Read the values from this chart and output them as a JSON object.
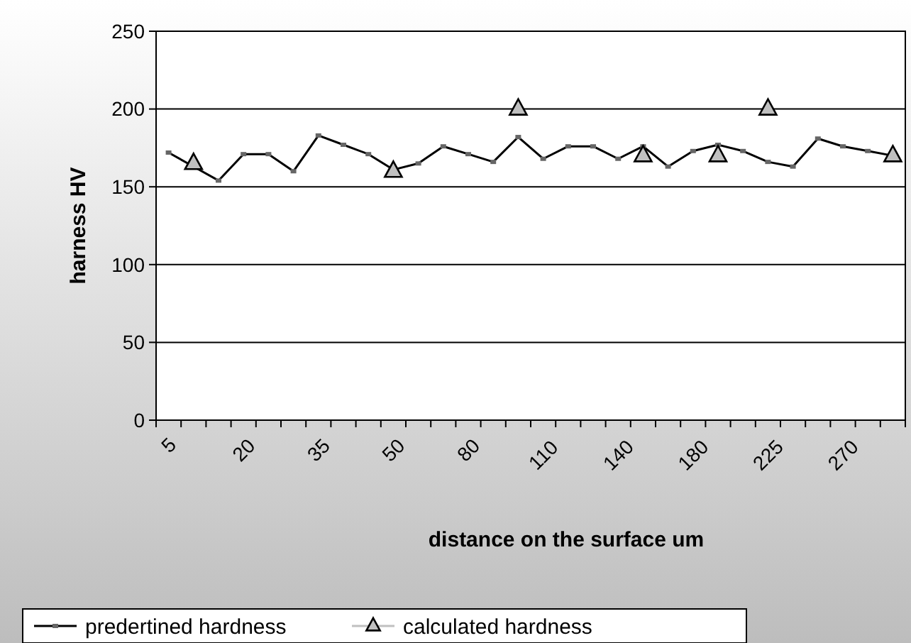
{
  "chart_data": {
    "type": "line",
    "xlabel": "distance on the surface um",
    "ylabel": "harness HV",
    "categories": [
      "5",
      null,
      null,
      "20",
      null,
      null,
      "35",
      null,
      null,
      "50",
      null,
      null,
      "80",
      null,
      null,
      "110",
      null,
      null,
      "140",
      null,
      null,
      "180",
      null,
      null,
      "225",
      null,
      null,
      "270",
      null,
      null
    ],
    "series": [
      {
        "name": "predertined hardness",
        "color": "#000000",
        "marker": "square",
        "values": [
          172,
          163,
          154,
          171,
          171,
          160,
          183,
          177,
          171,
          161,
          165,
          176,
          171,
          166,
          182,
          168,
          176,
          176,
          168,
          176,
          163,
          173,
          177,
          173,
          166,
          163,
          181,
          176,
          173,
          170
        ]
      },
      {
        "name": "calculated hardness",
        "type": "scatter",
        "color": "#c0c0c0",
        "marker": "triangle",
        "values": [
          null,
          165,
          null,
          null,
          null,
          null,
          null,
          null,
          null,
          160,
          null,
          null,
          null,
          null,
          200,
          null,
          null,
          null,
          null,
          170,
          null,
          null,
          170,
          null,
          200,
          null,
          null,
          null,
          null,
          170
        ]
      }
    ],
    "ylim": [
      0,
      250
    ],
    "yticks": [
      0,
      50,
      100,
      150,
      200,
      250
    ],
    "grid": "y",
    "legend": "bottom"
  }
}
